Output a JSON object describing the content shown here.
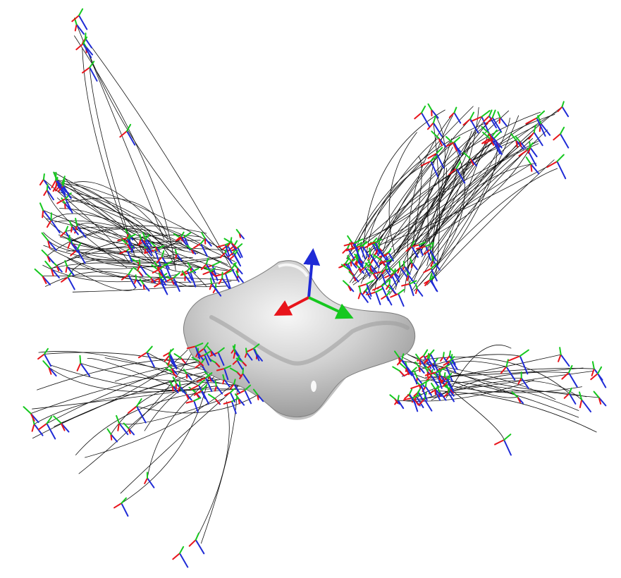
{
  "scene": {
    "background": "#ffffff",
    "axis_colors": {
      "x": "#e8141b",
      "y": "#16c81f",
      "z": "#1f2bd6"
    },
    "trajectory_color": "#111111",
    "object_color": "#c9c9c9",
    "object_highlight": "#f4f4f4",
    "object_shadow": "#8a8a8a",
    "clusters": [
      {
        "name": "upper-left",
        "frame_count": 60,
        "trajectory_count": 55
      },
      {
        "name": "upper-right",
        "frame_count": 60,
        "trajectory_count": 60
      },
      {
        "name": "lower-left",
        "frame_count": 45,
        "trajectory_count": 30
      },
      {
        "name": "lower-right",
        "frame_count": 45,
        "trajectory_count": 22
      }
    ]
  }
}
